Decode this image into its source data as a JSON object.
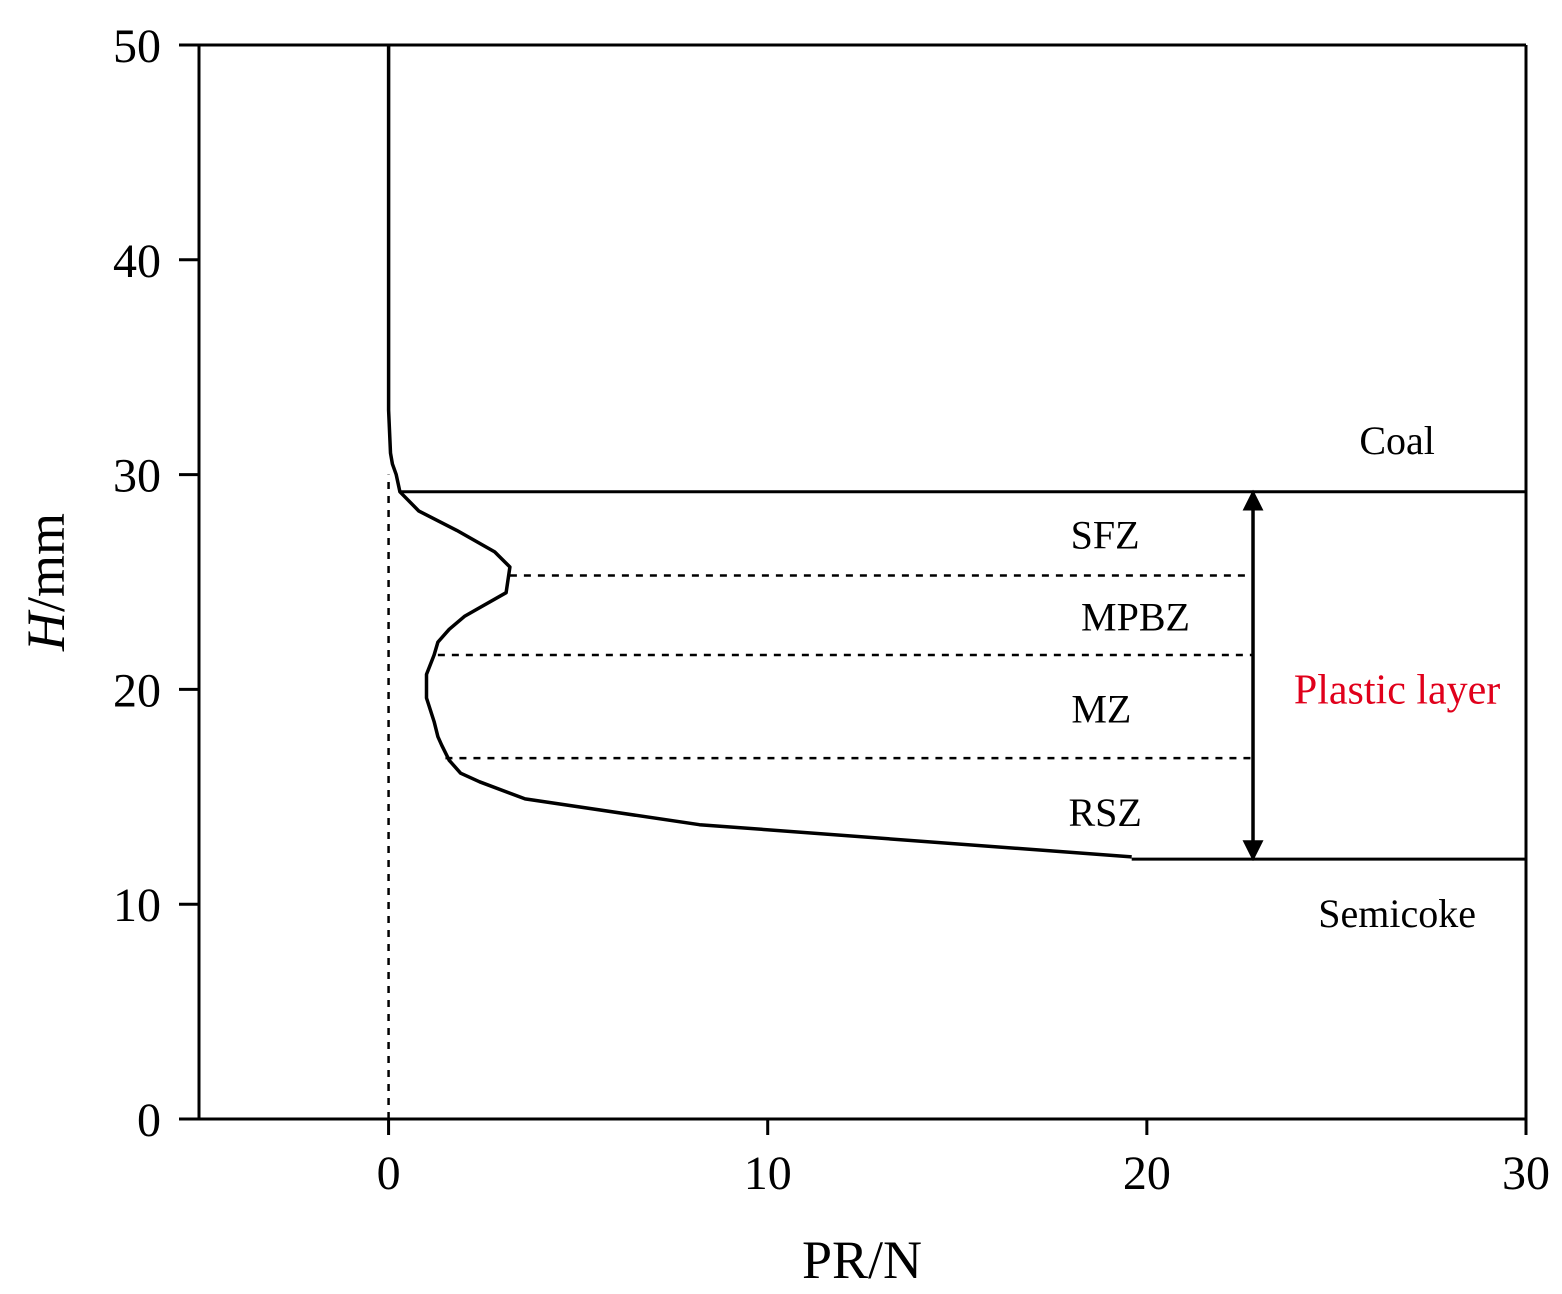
{
  "chart_data": {
    "type": "line",
    "xlabel": "PR/N",
    "ylabel_italic": "H",
    "ylabel_rest": "/mm",
    "xlim": [
      -5,
      30
    ],
    "ylim": [
      0,
      50
    ],
    "xticks": [
      0,
      10,
      20,
      30
    ],
    "yticks": [
      0,
      10,
      20,
      30,
      40,
      50
    ],
    "grid": false,
    "series": [
      {
        "x": [
          0.0,
          0.0,
          0.0,
          0.05,
          0.1,
          0.2,
          0.3,
          0.8,
          1.8,
          2.8,
          3.2,
          3.1,
          2.3,
          2.0,
          1.6,
          1.3,
          1.2,
          1.0,
          1.0,
          1.2,
          1.3,
          1.4,
          1.6,
          1.9,
          2.4,
          3.6,
          8.2,
          19.6
        ],
        "y": [
          50,
          40,
          33,
          31,
          30.5,
          30,
          29.2,
          28.3,
          27.4,
          26.4,
          25.7,
          24.5,
          23.7,
          23.4,
          22.8,
          22.2,
          21.6,
          20.7,
          19.6,
          18.5,
          17.8,
          17.4,
          16.7,
          16.1,
          15.7,
          14.9,
          13.7,
          12.2
        ]
      }
    ],
    "vertical_reference": {
      "x": 0,
      "y_from": 0,
      "y_to": 30,
      "style": "dashed"
    },
    "boundaries": [
      {
        "y": 29.2,
        "x_from": 0.3,
        "x_to": 30,
        "style": "solid"
      },
      {
        "y": 25.3,
        "x_from": 3.2,
        "x_to": 22.8,
        "style": "dashed"
      },
      {
        "y": 21.6,
        "x_from": 1.3,
        "x_to": 22.8,
        "style": "dashed"
      },
      {
        "y": 16.8,
        "x_from": 1.5,
        "x_to": 22.8,
        "style": "dashed"
      },
      {
        "y": 12.1,
        "x_from": 19.6,
        "x_to": 30,
        "style": "solid"
      }
    ],
    "double_arrow": {
      "x": 22.8,
      "y_from": 12.1,
      "y_to": 29.2
    },
    "annotations": [
      {
        "text": "Coal",
        "x": 26.6,
        "y": 31.6,
        "color": "#000000"
      },
      {
        "text": "SFZ",
        "x": 18.9,
        "y": 27.2,
        "color": "#000000"
      },
      {
        "text": "MPBZ",
        "x": 19.7,
        "y": 23.4,
        "color": "#000000"
      },
      {
        "text": "Plastic layer",
        "x": 26.6,
        "y": 20.0,
        "color": "#e0001b"
      },
      {
        "text": "MZ",
        "x": 18.8,
        "y": 19.1,
        "color": "#000000"
      },
      {
        "text": "RSZ",
        "x": 18.9,
        "y": 14.3,
        "color": "#000000"
      },
      {
        "text": "Semicoke",
        "x": 26.6,
        "y": 9.6,
        "color": "#000000"
      }
    ]
  }
}
